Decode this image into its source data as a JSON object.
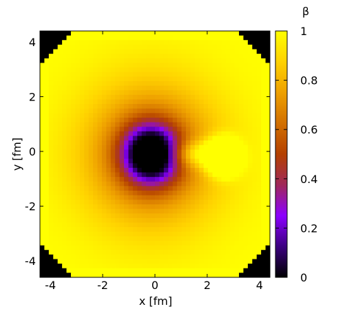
{
  "chart_data": {
    "type": "heatmap",
    "title": "",
    "xlabel": "x [fm]",
    "ylabel": "y [fm]",
    "colorbar_label": "β",
    "xlim": [
      -4.4,
      4.4
    ],
    "ylim": [
      -4.6,
      4.4
    ],
    "x_ticks": [
      -4,
      -2,
      0,
      2,
      4
    ],
    "y_ticks": [
      4,
      2,
      0,
      -2,
      -4
    ],
    "colorbar_range": [
      0,
      1
    ],
    "colorbar_ticks": [
      1,
      0.8,
      0.6,
      0.4,
      0.2,
      0
    ],
    "colormap": [
      "#000000",
      "#3c0080",
      "#8c00ff",
      "#a0285a",
      "#b44000",
      "#d27000",
      "#eea000",
      "#ffd200",
      "#ffff00"
    ],
    "grid": false,
    "features": [
      {
        "kind": "minimum",
        "x": -0.15,
        "y": -0.1,
        "value": 0.05
      },
      {
        "kind": "maximum",
        "x": 2.6,
        "y": -0.2,
        "value": 1.0
      }
    ],
    "edge_value": 0.95,
    "corner_value": 0.0
  }
}
